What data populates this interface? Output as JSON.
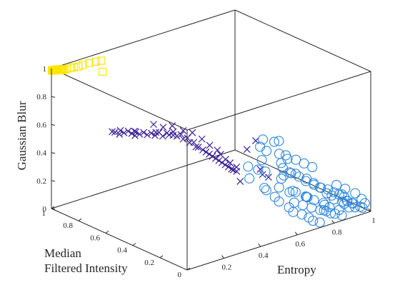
{
  "chart_data": {
    "type": "scatter",
    "xlabel": "Entropy",
    "ylabel_lines": [
      "Median",
      "Filtered Intensity"
    ],
    "zlabel": "Gaussian Blur",
    "xlim": [
      0,
      1
    ],
    "ylim": [
      0,
      1
    ],
    "zlim": [
      0,
      1
    ],
    "xticks": [
      "0.2",
      "0.4",
      "0.6",
      "0.8",
      "1"
    ],
    "yticks": [
      "0",
      "0.2",
      "0.4",
      "0.6",
      "0.8",
      "1"
    ],
    "zticks": [
      "0",
      "0.2",
      "0.4",
      "0.6",
      "0.8",
      "1"
    ],
    "grid": false,
    "legend": "none",
    "series": [
      {
        "marker": "square",
        "color": "#FFE600",
        "points": [
          [
            0.001,
            0.999,
            0.985
          ],
          [
            0.003,
            0.998,
            0.985
          ],
          [
            0.005,
            0.997,
            0.99
          ],
          [
            0.008,
            0.995,
            0.985
          ],
          [
            0.01,
            0.994,
            0.99
          ],
          [
            0.012,
            0.993,
            0.985
          ],
          [
            0.015,
            0.991,
            0.99
          ],
          [
            0.018,
            0.99,
            0.985
          ],
          [
            0.02,
            0.988,
            0.99
          ],
          [
            0.023,
            0.987,
            0.985
          ],
          [
            0.026,
            0.985,
            0.99
          ],
          [
            0.03,
            0.983,
            0.985
          ],
          [
            0.033,
            0.981,
            0.99
          ],
          [
            0.037,
            0.979,
            0.985
          ],
          [
            0.04,
            0.977,
            0.99
          ],
          [
            0.045,
            0.975,
            0.98
          ],
          [
            0.05,
            0.972,
            0.985
          ],
          [
            0.06,
            0.968,
            0.985
          ],
          [
            0.075,
            0.963,
            0.99
          ],
          [
            0.09,
            0.957,
            0.99
          ],
          [
            0.11,
            0.95,
            0.99
          ],
          [
            0.13,
            0.945,
            0.995
          ],
          [
            0.16,
            0.937,
            1.0
          ],
          [
            0.19,
            0.93,
            1.0
          ],
          [
            0.22,
            0.93,
            0.995
          ],
          [
            0.19,
            0.88,
            0.95
          ]
        ]
      },
      {
        "marker": "x",
        "color": "#3A1F96",
        "points": [
          [
            0.05,
            0.6,
            0.7
          ],
          [
            0.08,
            0.6,
            0.7
          ],
          [
            0.07,
            0.56,
            0.705
          ],
          [
            0.1,
            0.57,
            0.7
          ],
          [
            0.09,
            0.53,
            0.705
          ],
          [
            0.12,
            0.54,
            0.7
          ],
          [
            0.11,
            0.5,
            0.705
          ],
          [
            0.14,
            0.51,
            0.7
          ],
          [
            0.13,
            0.47,
            0.705
          ],
          [
            0.16,
            0.48,
            0.7
          ],
          [
            0.15,
            0.44,
            0.705
          ],
          [
            0.18,
            0.45,
            0.71
          ],
          [
            0.17,
            0.41,
            0.705
          ],
          [
            0.2,
            0.42,
            0.71
          ],
          [
            0.19,
            0.39,
            0.715
          ],
          [
            0.22,
            0.4,
            0.72
          ],
          [
            0.21,
            0.36,
            0.71
          ],
          [
            0.24,
            0.37,
            0.705
          ],
          [
            0.23,
            0.34,
            0.69
          ],
          [
            0.26,
            0.35,
            0.68
          ],
          [
            0.25,
            0.32,
            0.665
          ],
          [
            0.28,
            0.33,
            0.65
          ],
          [
            0.27,
            0.3,
            0.635
          ],
          [
            0.29,
            0.31,
            0.62
          ],
          [
            0.3,
            0.29,
            0.605
          ],
          [
            0.31,
            0.28,
            0.59
          ],
          [
            0.32,
            0.27,
            0.575
          ],
          [
            0.33,
            0.26,
            0.56
          ],
          [
            0.34,
            0.25,
            0.545
          ],
          [
            0.35,
            0.24,
            0.53
          ],
          [
            0.36,
            0.23,
            0.515
          ],
          [
            0.37,
            0.22,
            0.5
          ],
          [
            0.38,
            0.21,
            0.485
          ],
          [
            0.39,
            0.2,
            0.47
          ],
          [
            0.4,
            0.2,
            0.46
          ],
          [
            0.41,
            0.19,
            0.45
          ],
          [
            0.15,
            0.45,
            0.78
          ],
          [
            0.18,
            0.42,
            0.76
          ],
          [
            0.2,
            0.38,
            0.78
          ],
          [
            0.23,
            0.34,
            0.75
          ],
          [
            0.25,
            0.3,
            0.745
          ],
          [
            0.28,
            0.27,
            0.7
          ],
          [
            0.3,
            0.24,
            0.66
          ],
          [
            0.32,
            0.21,
            0.63
          ],
          [
            0.33,
            0.2,
            0.6
          ],
          [
            0.35,
            0.19,
            0.56
          ],
          [
            0.36,
            0.17,
            0.54
          ],
          [
            0.38,
            0.15,
            0.51
          ],
          [
            0.1,
            0.52,
            0.69
          ],
          [
            0.06,
            0.58,
            0.69
          ],
          [
            0.4,
            0.15,
            0.4
          ],
          [
            0.4,
            0.1,
            0.65
          ],
          [
            0.44,
            0.09,
            0.7
          ],
          [
            0.47,
            0.08,
            0.45
          ],
          [
            0.45,
            0.07,
            0.5
          ],
          [
            0.48,
            0.05,
            0.44
          ],
          [
            0.05,
            0.62,
            0.695
          ],
          [
            0.09,
            0.51,
            0.73
          ],
          [
            0.14,
            0.42,
            0.74
          ],
          [
            0.19,
            0.36,
            0.725
          ]
        ]
      },
      {
        "marker": "circle",
        "color": "#2E86DE",
        "points": [
          [
            0.45,
            0.15,
            0.4
          ],
          [
            0.5,
            0.1,
            0.45
          ],
          [
            0.55,
            0.05,
            0.4
          ],
          [
            0.48,
            0.08,
            0.35
          ],
          [
            0.52,
            0.12,
            0.3
          ],
          [
            0.56,
            0.08,
            0.32
          ],
          [
            0.6,
            0.1,
            0.38
          ],
          [
            0.58,
            0.03,
            0.3
          ],
          [
            0.62,
            0.06,
            0.28
          ],
          [
            0.65,
            0.08,
            0.25
          ],
          [
            0.68,
            0.04,
            0.22
          ],
          [
            0.7,
            0.06,
            0.2
          ],
          [
            0.72,
            0.1,
            0.18
          ],
          [
            0.75,
            0.08,
            0.15
          ],
          [
            0.78,
            0.05,
            0.13
          ],
          [
            0.8,
            0.07,
            0.1
          ],
          [
            0.82,
            0.06,
            0.08
          ],
          [
            0.85,
            0.03,
            0.06
          ],
          [
            0.86,
            0.02,
            0.12
          ],
          [
            0.88,
            0.05,
            0.15
          ],
          [
            0.9,
            0.04,
            0.1
          ],
          [
            0.92,
            0.03,
            0.08
          ],
          [
            0.95,
            0.01,
            0.05
          ],
          [
            0.97,
            0.02,
            0.03
          ],
          [
            0.54,
            0.18,
            0.48
          ],
          [
            0.58,
            0.2,
            0.52
          ],
          [
            0.62,
            0.16,
            0.5
          ],
          [
            0.65,
            0.14,
            0.46
          ],
          [
            0.61,
            0.12,
            0.42
          ],
          [
            0.64,
            0.1,
            0.38
          ],
          [
            0.68,
            0.12,
            0.35
          ],
          [
            0.71,
            0.08,
            0.32
          ],
          [
            0.74,
            0.07,
            0.28
          ],
          [
            0.76,
            0.05,
            0.25
          ],
          [
            0.79,
            0.04,
            0.2
          ],
          [
            0.81,
            0.03,
            0.18
          ],
          [
            0.83,
            0.04,
            0.14
          ],
          [
            0.87,
            0.02,
            0.1
          ],
          [
            0.89,
            0.01,
            0.07
          ],
          [
            0.93,
            0.02,
            0.05
          ],
          [
            0.5,
            0.03,
            0.3
          ],
          [
            0.53,
            0.04,
            0.25
          ],
          [
            0.57,
            0.02,
            0.2
          ],
          [
            0.6,
            0.03,
            0.15
          ],
          [
            0.64,
            0.02,
            0.12
          ],
          [
            0.67,
            0.01,
            0.09
          ],
          [
            0.7,
            0.02,
            0.05
          ],
          [
            0.73,
            0.01,
            0.03
          ],
          [
            0.66,
            0.2,
            0.4
          ],
          [
            0.69,
            0.18,
            0.33
          ],
          [
            0.72,
            0.15,
            0.3
          ],
          [
            0.75,
            0.14,
            0.26
          ],
          [
            0.78,
            0.12,
            0.23
          ],
          [
            0.81,
            0.11,
            0.2
          ],
          [
            0.84,
            0.1,
            0.18
          ],
          [
            0.86,
            0.08,
            0.16
          ],
          [
            0.88,
            0.07,
            0.14
          ],
          [
            0.9,
            0.06,
            0.12
          ],
          [
            0.91,
            0.05,
            0.09
          ],
          [
            0.94,
            0.05,
            0.06
          ],
          [
            0.56,
            0.22,
            0.55
          ],
          [
            0.59,
            0.24,
            0.58
          ],
          [
            0.63,
            0.21,
            0.56
          ],
          [
            0.67,
            0.23,
            0.54
          ],
          [
            0.48,
            0.2,
            0.45
          ],
          [
            0.52,
            0.18,
            0.42
          ],
          [
            0.76,
            0.02,
            0.1
          ],
          [
            0.79,
            0.01,
            0.07
          ],
          [
            0.82,
            0.02,
            0.05
          ],
          [
            0.85,
            0.01,
            0.03
          ],
          [
            0.62,
            0.05,
            0.2
          ],
          [
            0.66,
            0.04,
            0.17
          ],
          [
            0.7,
            0.03,
            0.14
          ],
          [
            0.74,
            0.02,
            0.11
          ],
          [
            0.78,
            0.03,
            0.08
          ],
          [
            0.88,
            0.09,
            0.2
          ],
          [
            0.92,
            0.08,
            0.16
          ],
          [
            0.96,
            0.06,
            0.12
          ],
          [
            0.98,
            0.04,
            0.08
          ],
          [
            0.99,
            0.03,
            0.05
          ],
          [
            0.7,
            0.22,
            0.43
          ],
          [
            0.74,
            0.2,
            0.39
          ],
          [
            0.77,
            0.18,
            0.36
          ],
          [
            0.8,
            0.16,
            0.33
          ]
        ]
      }
    ]
  }
}
